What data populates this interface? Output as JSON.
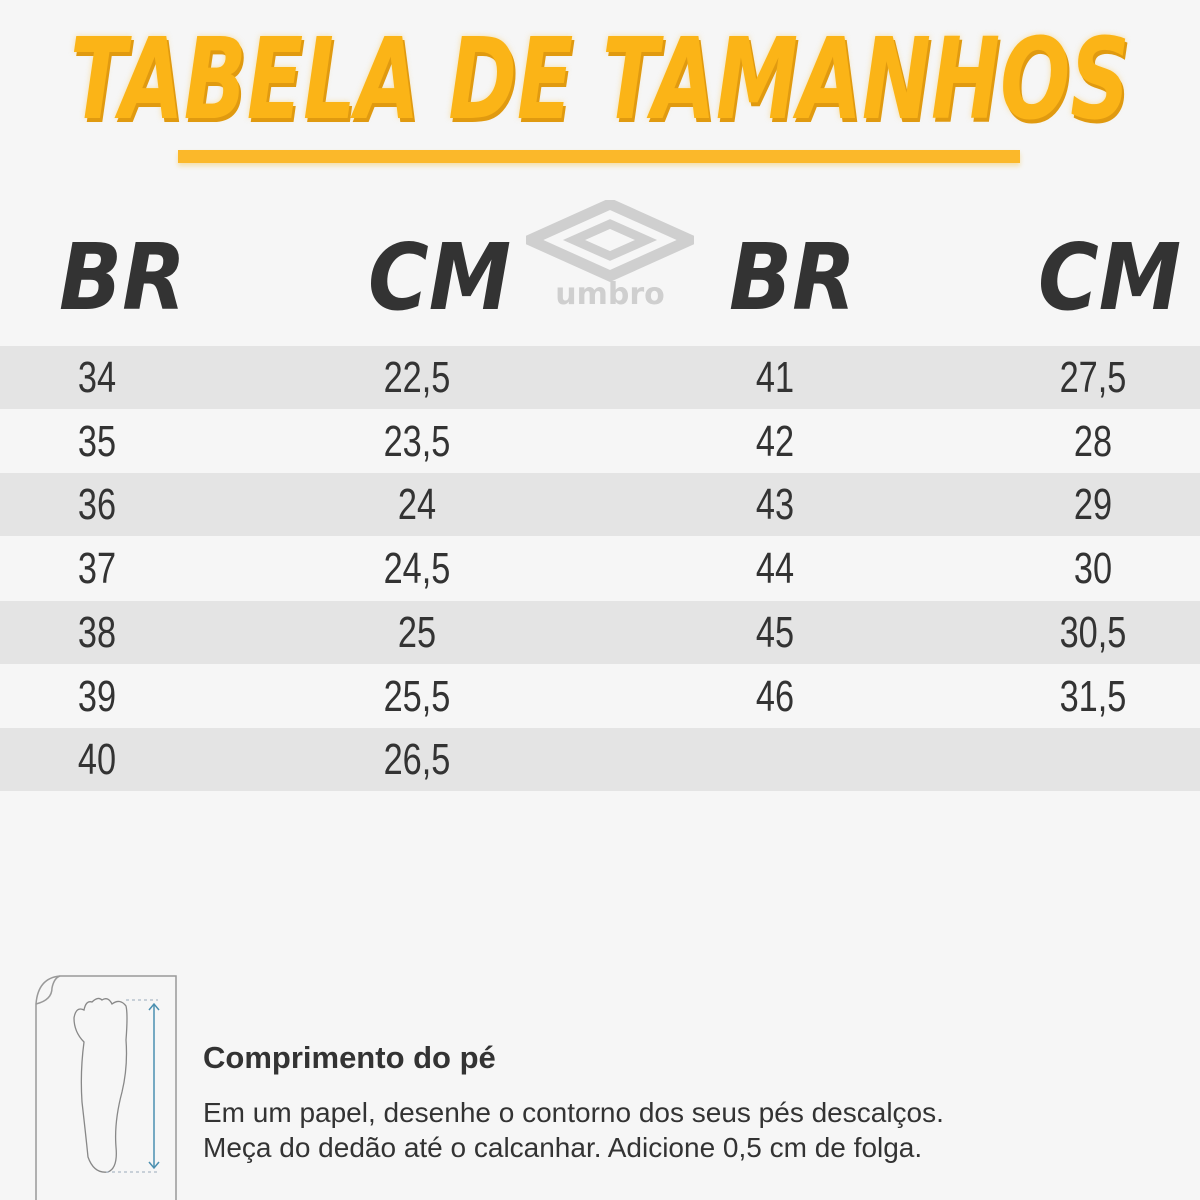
{
  "title": "TABELA DE TAMANHOS",
  "brand": "umbro",
  "headers": {
    "br": "BR",
    "cm": "CM"
  },
  "colors": {
    "title": "#fbb417",
    "row_shade": "#e4e4e4",
    "text": "#333333",
    "arrow": "#4a8fb0"
  },
  "left_table": [
    {
      "br": "34",
      "cm": "22,5"
    },
    {
      "br": "35",
      "cm": "23,5"
    },
    {
      "br": "36",
      "cm": "24"
    },
    {
      "br": "37",
      "cm": "24,5"
    },
    {
      "br": "38",
      "cm": "25"
    },
    {
      "br": "39",
      "cm": "25,5"
    },
    {
      "br": "40",
      "cm": "26,5"
    }
  ],
  "right_table": [
    {
      "br": "41",
      "cm": "27,5"
    },
    {
      "br": "42",
      "cm": "28"
    },
    {
      "br": "43",
      "cm": "29"
    },
    {
      "br": "44",
      "cm": "30"
    },
    {
      "br": "45",
      "cm": "30,5"
    },
    {
      "br": "46",
      "cm": "31,5"
    }
  ],
  "footer": {
    "icon": "foot-measure-icon",
    "title": "Comprimento do pé",
    "line1": "Em um papel, desenhe o contorno dos seus pés descalços.",
    "line2": "Meça do dedão até o calcanhar. Adicione 0,5 cm de folga."
  }
}
